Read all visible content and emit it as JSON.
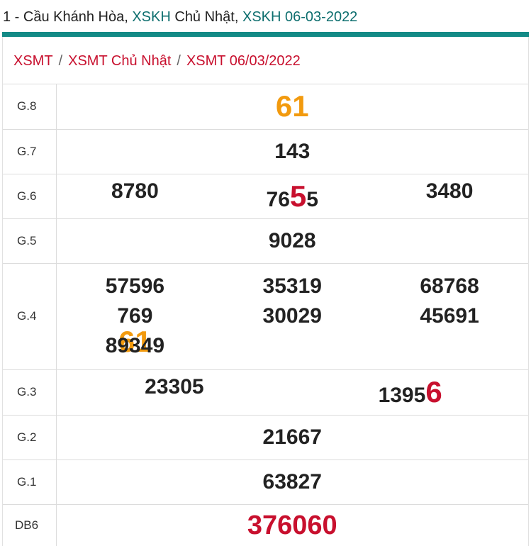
{
  "header": {
    "prefix": "1 - Cầu Khánh Hòa, ",
    "link1": "XSKH",
    "middle": " Chủ Nhật, ",
    "link2": "XSKH 06-03-2022"
  },
  "breadcrumb": {
    "items": [
      "XSMT",
      "XSMT Chủ Nhật",
      "XSMT 06/03/2022"
    ],
    "separator": "/"
  },
  "prizes": {
    "g8": {
      "label": "G.8",
      "value": "61"
    },
    "g7": {
      "label": "G.7",
      "value": "143"
    },
    "g6": {
      "label": "G.6",
      "values": [
        {
          "main": "8780",
          "tail": ""
        },
        {
          "main": "76",
          "hl": "5",
          "tail": "5"
        },
        {
          "main": "3480",
          "tail": ""
        }
      ]
    },
    "g5": {
      "label": "G.5",
      "value": "9028"
    },
    "g4": {
      "label": "G.4",
      "col1": [
        "57596",
        {
          "main": "769",
          "hl": "61"
        },
        "89349"
      ],
      "col2": [
        "35319",
        "30029"
      ],
      "col3": [
        "68768",
        "45691"
      ]
    },
    "g3": {
      "label": "G.3",
      "values": [
        {
          "main": "23305",
          "hl": ""
        },
        {
          "main": "1395",
          "hl": "6"
        }
      ]
    },
    "g2": {
      "label": "G.2",
      "value": "21667"
    },
    "g1": {
      "label": "G.1",
      "value": "63827"
    },
    "db": {
      "label": "DB6",
      "value": "376060"
    }
  },
  "colors": {
    "accent_teal": "#138a86",
    "link_teal": "#0d6e6e",
    "red": "#c8102e",
    "orange": "#f29a0e"
  }
}
